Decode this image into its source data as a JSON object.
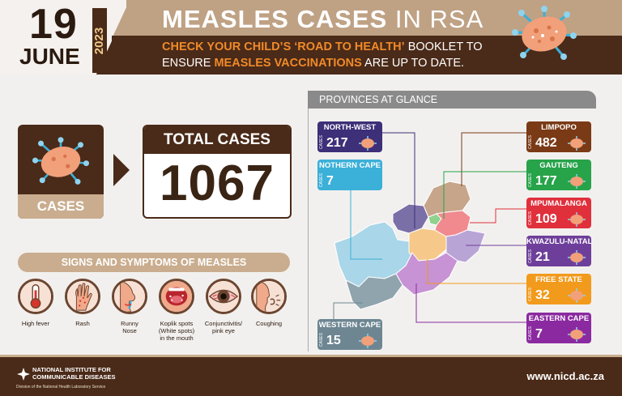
{
  "header": {
    "day": "19",
    "month": "JUNE",
    "year": "2023",
    "title_bold": "MEASLES CASES",
    "title_light": "IN RSA",
    "subtitle_line1_a": "CHECK YOUR CHILD’S",
    "subtitle_line1_b": "‘ROAD TO HEALTH’",
    "subtitle_line1_c": "BOOKLET TO",
    "subtitle_line2_a": "ENSURE",
    "subtitle_line2_b": "MEASLES VACCINATIONS",
    "subtitle_line2_c": "ARE UP TO DATE."
  },
  "cases": {
    "label": "CASES",
    "total_label": "TOTAL CASES",
    "total_value": "1067"
  },
  "symptoms": {
    "title": "SIGNS AND SYMPTOMS OF MEASLES",
    "items": [
      {
        "line1": "High fever",
        "line2": "",
        "line3": ""
      },
      {
        "line1": "Rash",
        "line2": "",
        "line3": ""
      },
      {
        "line1": "Runny",
        "line2": "Nose",
        "line3": ""
      },
      {
        "line1": "Koplik spots",
        "line2": "(White spots)",
        "line3": "in the mouth"
      },
      {
        "line1": "Conjunctivitis/",
        "line2": "pink eye",
        "line3": ""
      },
      {
        "line1": "Coughing",
        "line2": "",
        "line3": ""
      }
    ]
  },
  "provinces": {
    "title": "PROVINCES AT GLANCE",
    "cases_tag": "CASES",
    "items": [
      {
        "name": "NORTH-WEST",
        "value": "217",
        "color": "#3d2f78"
      },
      {
        "name": "NOTHERN CAPE",
        "value": "7",
        "color": "#3bb0d8"
      },
      {
        "name": "LIMPOPO",
        "value": "482",
        "color": "#7a3a16"
      },
      {
        "name": "GAUTENG",
        "value": "177",
        "color": "#27a34a"
      },
      {
        "name": "MPUMALANGA",
        "value": "109",
        "color": "#e0303c"
      },
      {
        "name": "KWAZULU-NATAL",
        "value": "21",
        "color": "#6e3f9a"
      },
      {
        "name": "FREE STATE",
        "value": "32",
        "color": "#f29a1c"
      },
      {
        "name": "EASTERN CAPE",
        "value": "7",
        "color": "#8b2aa0"
      },
      {
        "name": "WESTERN CAPE",
        "value": "15",
        "color": "#6d8692"
      }
    ]
  },
  "footer": {
    "org_line1": "NATIONAL INSTITUTE FOR",
    "org_line2": "COMMUNICABLE DISEASES",
    "org_sub": "Division of the National Health Laboratory Service",
    "website": "www.nicd.ac.za"
  },
  "colors": {
    "brown_dark": "#4a2a18",
    "tan": "#c9ad8e",
    "accent_orange": "#f08a2a"
  }
}
